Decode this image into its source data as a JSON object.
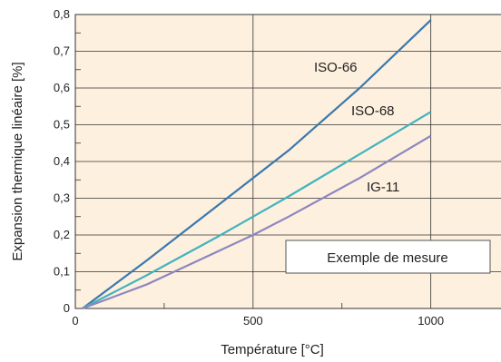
{
  "chart_data": {
    "type": "line",
    "xlabel": "Température [°C]",
    "ylabel": "Expansion thermique linéaire [%]",
    "xlim": [
      0,
      1200
    ],
    "ylim": [
      0,
      0.8
    ],
    "x_ticks": [
      "0",
      "500",
      "1000"
    ],
    "y_ticks": [
      "0",
      "0,1",
      "0,2",
      "0,3",
      "0,4",
      "0,5",
      "0,6",
      "0,7",
      "0,8"
    ],
    "grid": true,
    "note": "Exemple de mesure",
    "series": [
      {
        "name": "ISO-66",
        "color": "#3a78ad",
        "x": [
          20,
          200,
          400,
          500,
          600,
          800,
          1000
        ],
        "y": [
          0,
          0.13,
          0.28,
          0.355,
          0.43,
          0.6,
          0.785
        ]
      },
      {
        "name": "ISO-68",
        "color": "#43b3bd",
        "x": [
          20,
          200,
          400,
          500,
          600,
          800,
          1000
        ],
        "y": [
          0,
          0.09,
          0.195,
          0.25,
          0.305,
          0.42,
          0.535
        ]
      },
      {
        "name": "IG-11",
        "color": "#8d86bf",
        "x": [
          20,
          200,
          400,
          500,
          600,
          800,
          1000
        ],
        "y": [
          0,
          0.065,
          0.155,
          0.2,
          0.25,
          0.355,
          0.47
        ]
      }
    ]
  }
}
